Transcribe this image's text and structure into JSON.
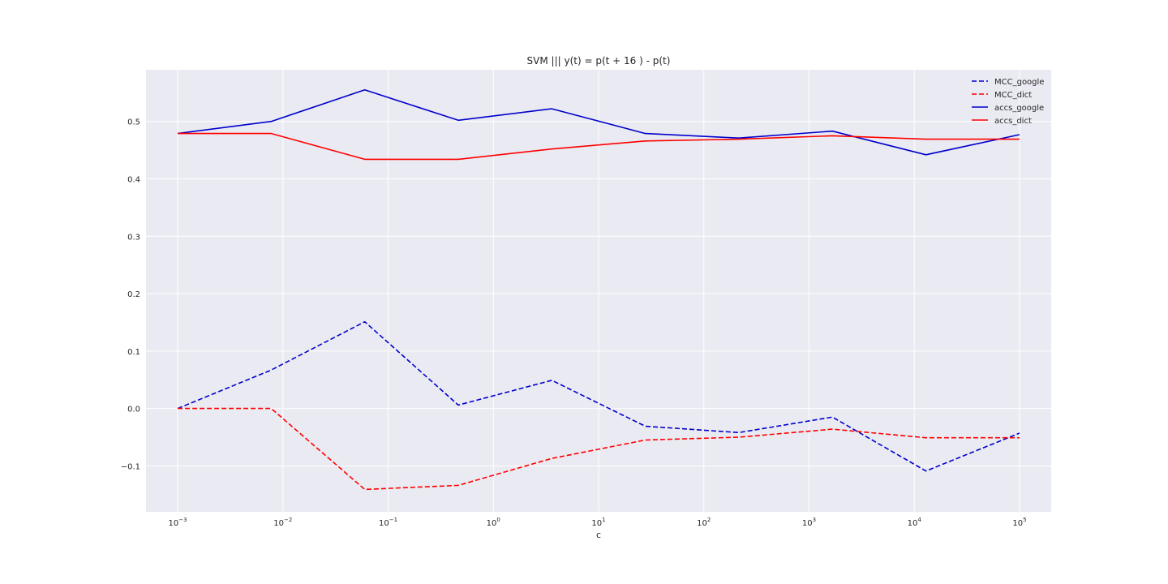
{
  "chart_data": {
    "type": "line",
    "title": "SVM ||| y(t) = p(t + 16 ) - p(t)",
    "xlabel": "c",
    "ylabel": "",
    "xscale": "log",
    "xlim": [
      0.0005,
      200000
    ],
    "ylim": [
      -0.18,
      0.59
    ],
    "x_ticks": [
      {
        "value": 0.001,
        "base": "10",
        "exp": "−3"
      },
      {
        "value": 0.01,
        "base": "10",
        "exp": "−2"
      },
      {
        "value": 0.1,
        "base": "10",
        "exp": "−1"
      },
      {
        "value": 1,
        "base": "10",
        "exp": "0"
      },
      {
        "value": 10,
        "base": "10",
        "exp": "1"
      },
      {
        "value": 100,
        "base": "10",
        "exp": "2"
      },
      {
        "value": 1000,
        "base": "10",
        "exp": "3"
      },
      {
        "value": 10000,
        "base": "10",
        "exp": "4"
      },
      {
        "value": 100000,
        "base": "10",
        "exp": "5"
      }
    ],
    "y_ticks": [
      {
        "value": -0.1,
        "label": "−0.1"
      },
      {
        "value": 0.0,
        "label": "0.0"
      },
      {
        "value": 0.1,
        "label": "0.1"
      },
      {
        "value": 0.2,
        "label": "0.2"
      },
      {
        "value": 0.3,
        "label": "0.3"
      },
      {
        "value": 0.4,
        "label": "0.4"
      },
      {
        "value": 0.5,
        "label": "0.5"
      }
    ],
    "x": [
      0.001,
      0.00774,
      0.0599,
      0.464,
      3.59,
      27.8,
      215,
      1668,
      12915,
      100000
    ],
    "series": [
      {
        "name": "MCC_google",
        "color": "#0000cc",
        "dash": "dashed",
        "values": [
          0.0,
          0.067,
          0.151,
          0.006,
          0.049,
          -0.031,
          -0.042,
          -0.015,
          -0.109,
          -0.043
        ]
      },
      {
        "name": "MCC_dict",
        "color": "#ff0000",
        "dash": "dashed",
        "values": [
          0.0,
          0.0,
          -0.141,
          -0.134,
          -0.087,
          -0.055,
          -0.05,
          -0.036,
          -0.051,
          -0.051
        ]
      },
      {
        "name": "accs_google",
        "color": "#0000cc",
        "dash": "solid",
        "values": [
          0.479,
          0.5,
          0.555,
          0.502,
          0.522,
          0.479,
          0.471,
          0.483,
          0.442,
          0.477
        ]
      },
      {
        "name": "accs_dict",
        "color": "#ff0000",
        "dash": "solid",
        "values": [
          0.479,
          0.479,
          0.434,
          0.434,
          0.452,
          0.466,
          0.469,
          0.475,
          0.469,
          0.469
        ]
      }
    ],
    "grid": true,
    "legend_position": "top-right",
    "background": "#eaeaf2",
    "grid_color": "#ffffff"
  }
}
